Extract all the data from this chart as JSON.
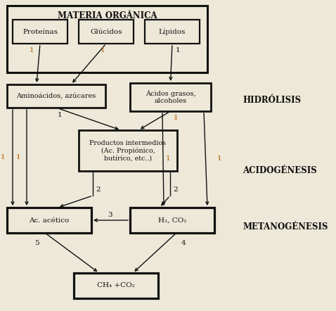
{
  "bg_color": "#ede8d8",
  "box_facecolor": "#ede8d8",
  "box_edgecolor": "#111111",
  "arrow_color": "#111111",
  "num_orange": "#b85c00",
  "num_black": "#111111",
  "label_hydrolisis": "HIDRÓLISIS",
  "label_acidogenesis": "ACIDOGÉNESIS",
  "label_metanogenesis": "METANOGÉNESIS",
  "fig_w": 4.78,
  "fig_h": 4.42,
  "dpi": 100
}
